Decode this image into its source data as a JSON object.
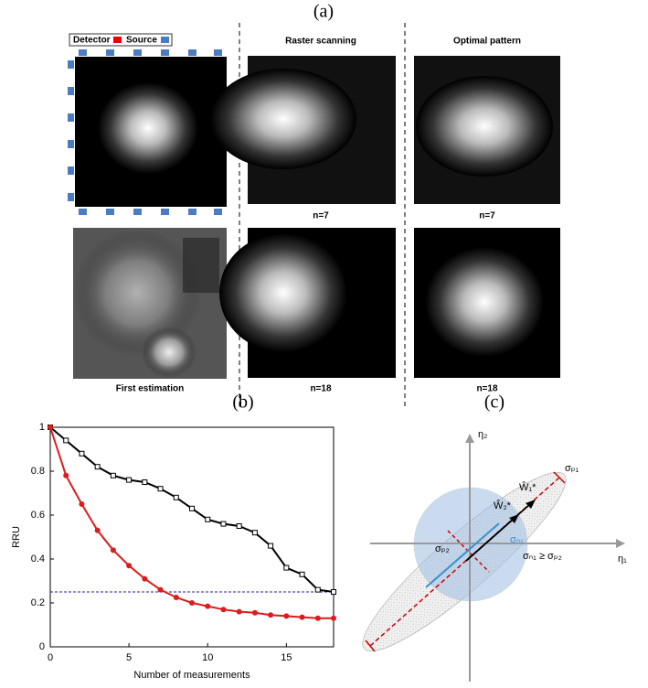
{
  "figure": {
    "panel_labels": [
      "(a)",
      "(b)",
      "(c)"
    ]
  },
  "panel_a": {
    "legend": [
      "Detector",
      "Source"
    ],
    "columns": [
      "Raster scanning",
      "Optimal pattern"
    ],
    "captions": [
      "n=7",
      "n=7",
      "First estimation",
      "n=18",
      "n=18"
    ]
  },
  "chart_data": {
    "type": "line",
    "xlabel": "Number of measurements",
    "ylabel": "RRU",
    "x": [
      0,
      1,
      2,
      3,
      4,
      5,
      6,
      7,
      8,
      9,
      10,
      11,
      12,
      13,
      14,
      15,
      16,
      17,
      18
    ],
    "series": [
      {
        "color": "#000000",
        "marker": "square",
        "values": [
          1,
          0.94,
          0.88,
          0.82,
          0.78,
          0.76,
          0.75,
          0.72,
          0.68,
          0.63,
          0.58,
          0.56,
          0.55,
          0.52,
          0.46,
          0.36,
          0.33,
          0.26,
          0.25
        ]
      },
      {
        "color": "#dd1c1c",
        "marker": "circle",
        "values": [
          1,
          0.78,
          0.65,
          0.53,
          0.44,
          0.37,
          0.31,
          0.26,
          0.225,
          0.2,
          0.185,
          0.17,
          0.16,
          0.155,
          0.145,
          0.14,
          0.135,
          0.13,
          0.13
        ]
      }
    ],
    "reference_line": {
      "value": 0.25,
      "color": "#1c1ca0"
    },
    "xlim": [
      0,
      18
    ],
    "xticks": [
      0,
      5,
      10,
      15
    ],
    "ylim": [
      0,
      1
    ],
    "yticks": [
      0,
      0.2,
      0.4,
      0.6,
      0.8,
      1
    ],
    "grid": false
  },
  "panel_c": {
    "labels": [
      "η₂",
      "η₁",
      "σₚ₁",
      "Ŵ₁*",
      "Ŵ₂*",
      "σₙ₁",
      "σₚ₂",
      "σₙ₁ ≥ σₚ₂"
    ]
  }
}
